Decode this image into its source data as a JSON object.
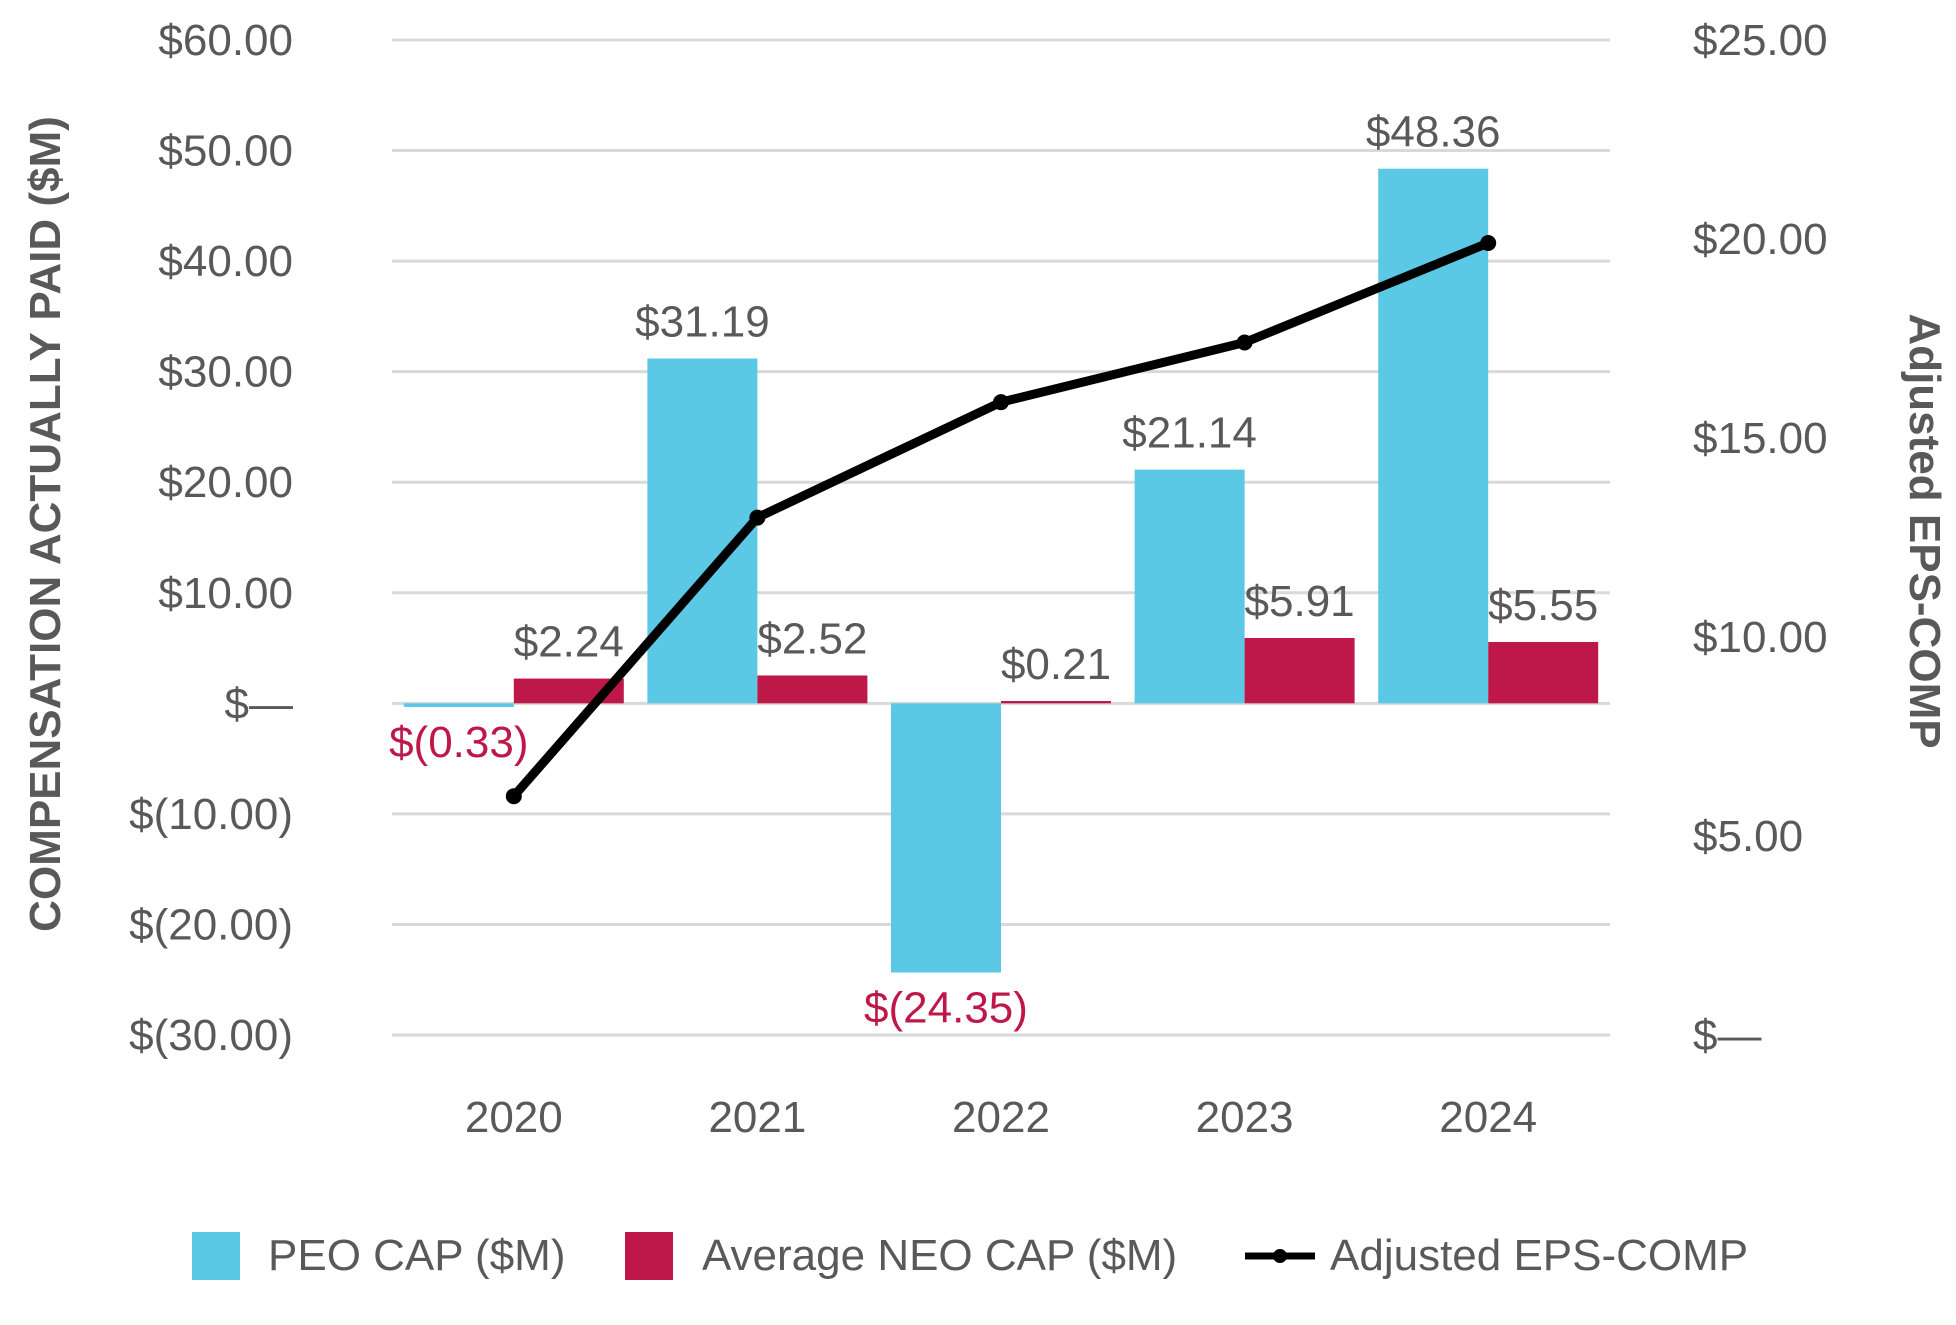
{
  "chart_data": {
    "type": "bar",
    "categories": [
      "2020",
      "2021",
      "2022",
      "2023",
      "2024"
    ],
    "series": [
      {
        "name": "PEO CAP ($M)",
        "type": "bar",
        "axis": "left",
        "color": "#5bc9e6",
        "values": [
          -0.33,
          31.19,
          -24.35,
          21.14,
          48.36
        ],
        "labels": [
          "$(0.33)",
          "$31.19",
          "$(24.35)",
          "$21.14",
          "$48.36"
        ]
      },
      {
        "name": "Average NEO CAP ($M)",
        "type": "bar",
        "axis": "left",
        "color": "#be1849",
        "values": [
          2.24,
          2.52,
          0.21,
          5.91,
          5.55
        ],
        "labels": [
          "$2.24",
          "$2.52",
          "$0.21",
          "$5.91",
          "$5.55"
        ]
      },
      {
        "name": "Adjusted EPS-COMP",
        "type": "line",
        "axis": "right",
        "color": "#000000",
        "values": [
          6.0,
          13.0,
          15.9,
          17.4,
          19.9
        ]
      }
    ],
    "y_left": {
      "label": "COMPENSATION ACTUALLY PAID ($M)",
      "min": -30,
      "max": 60,
      "ticks": [
        60,
        50,
        40,
        30,
        20,
        10,
        0,
        -10,
        -20,
        -30
      ],
      "tick_labels": [
        "$60.00",
        "$50.00",
        "$40.00",
        "$30.00",
        "$20.00",
        "$10.00",
        "$—",
        "$(10.00)",
        "$(20.00)",
        "$(30.00)"
      ]
    },
    "y_right": {
      "label": "Adjusted EPS-COMP",
      "min": 0,
      "max": 25,
      "ticks": [
        25,
        20,
        15,
        10,
        5,
        0
      ],
      "tick_labels": [
        "$25.00",
        "$20.00",
        "$15.00",
        "$10.00",
        "$5.00",
        "$—"
      ]
    },
    "grid": true,
    "legend_position": "bottom",
    "colors": {
      "negative_label": "#be1849",
      "label": "#595959",
      "grid": "#d9d9d9"
    }
  }
}
